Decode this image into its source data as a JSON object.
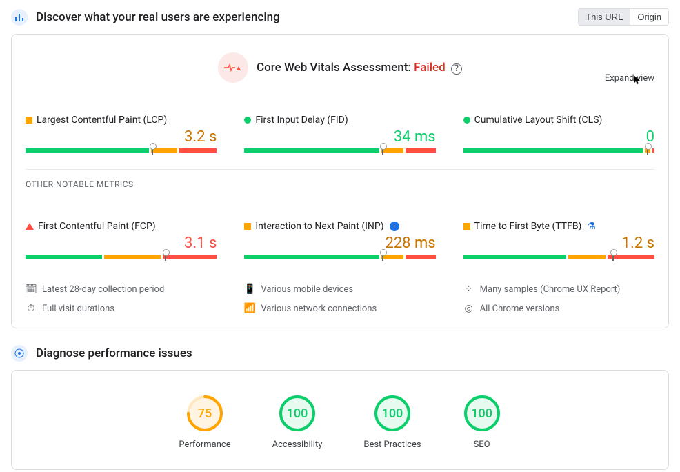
{
  "colors": {
    "good": "#0cce6b",
    "avg": "#ffa400",
    "poor": "#ff4e42",
    "blue": "#1a73e8",
    "red_text": "#d93025"
  },
  "header1": {
    "title": "Discover what your real users are experiencing",
    "tab_this_url": "This URL",
    "tab_origin": "Origin",
    "active_tab": "This URL"
  },
  "assessment": {
    "label": "Core Web Vitals Assessment:",
    "status": "Failed",
    "expand": "Expand view",
    "help": "?"
  },
  "metrics_primary": [
    {
      "icon": "orange-sq",
      "name": "Largest Contentful Paint (LCP)",
      "value": "3.2 s",
      "val_class": "val-orange",
      "bar": {
        "g": 66,
        "o": 14,
        "r": 20
      },
      "pin": 66
    },
    {
      "icon": "green-dot",
      "name": "First Input Delay (FID)",
      "value": "34 ms",
      "val_class": "val-green",
      "bar": {
        "g": 72,
        "o": 12,
        "r": 16
      },
      "pin": 72
    },
    {
      "icon": "green-dot",
      "name": "Cumulative Layout Shift (CLS)",
      "value": "0",
      "val_class": "val-green",
      "bar": {
        "g": 96,
        "o": 3,
        "r": 1
      },
      "pin": 96
    }
  ],
  "other_label": "OTHER NOTABLE METRICS",
  "metrics_other": [
    {
      "icon": "red-tri",
      "name": "First Contentful Paint (FCP)",
      "value": "3.1 s",
      "val_class": "val-red",
      "bar": {
        "g": 41,
        "o": 30,
        "r": 29
      },
      "pin": 73,
      "badge": null
    },
    {
      "icon": "orange-sq",
      "name": "Interaction to Next Paint (INP)",
      "value": "228 ms",
      "val_class": "val-orange",
      "bar": {
        "g": 72,
        "o": 12,
        "r": 16
      },
      "pin": 72,
      "badge": "info"
    },
    {
      "icon": "orange-sq",
      "name": "Time to First Byte (TTFB)",
      "value": "1.2 s",
      "val_class": "val-orange",
      "bar": {
        "g": 55,
        "o": 20,
        "r": 25
      },
      "badge": "flask",
      "pin": 78
    }
  ],
  "footnotes": {
    "collection": "Latest 28-day collection period",
    "devices": "Various mobile devices",
    "samples_pre": "Many samples (",
    "samples_link": "Chrome UX Report",
    "samples_post": ")",
    "durations": "Full visit durations",
    "network": "Various network connections",
    "chrome": "All Chrome versions"
  },
  "header2": {
    "title": "Diagnose performance issues"
  },
  "gauges": [
    {
      "label": "Performance",
      "score": 75,
      "color": "#ffa400",
      "bg": "#fff4e2",
      "frac": 0.75
    },
    {
      "label": "Accessibility",
      "score": 100,
      "color": "#0cce6b",
      "bg": "#e6faef",
      "frac": 1.0
    },
    {
      "label": "Best Practices",
      "score": 100,
      "color": "#0cce6b",
      "bg": "#e6faef",
      "frac": 1.0
    },
    {
      "label": "SEO",
      "score": 100,
      "color": "#0cce6b",
      "bg": "#e6faef",
      "frac": 1.0
    }
  ]
}
